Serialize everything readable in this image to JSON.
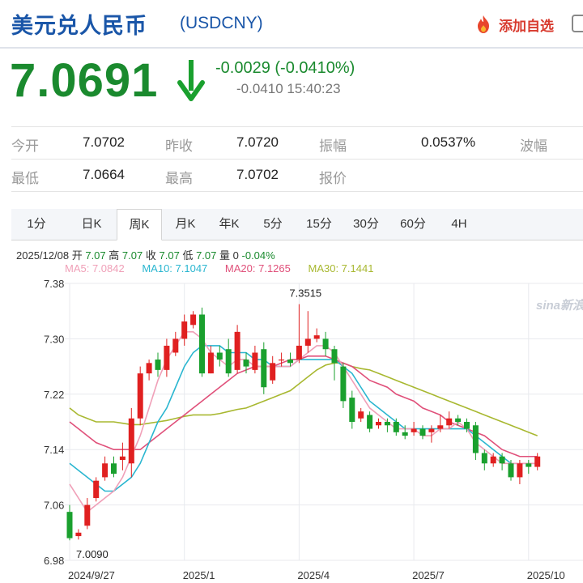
{
  "header": {
    "title": "美元兑人民币",
    "symbol": "(USDCNY)",
    "favorite_label": "添加自选"
  },
  "quote": {
    "price": "7.0691",
    "change": "-0.0029 (-0.0410%)",
    "change_pct_time": "-0.0410 15:40:23"
  },
  "stats": {
    "row1": [
      {
        "label": "今开",
        "value": "7.0702"
      },
      {
        "label": "昨收",
        "value": "7.0720"
      },
      {
        "label": "振幅",
        "value": "0.0537%"
      },
      {
        "label": "波幅",
        "value": ""
      }
    ],
    "row2": [
      {
        "label": "最低",
        "value": "7.0664"
      },
      {
        "label": "最高",
        "value": "7.0702"
      },
      {
        "label": "报价",
        "value": ""
      }
    ]
  },
  "tabs": [
    "1分",
    "日K",
    "周K",
    "月K",
    "年K",
    "5分",
    "15分",
    "30分",
    "60分",
    "4H"
  ],
  "active_tab": "周K",
  "ohlc_line": {
    "date": "2025/12/08",
    "open_label": "开",
    "open": "7.07",
    "high_label": "高",
    "high": "7.07",
    "close_label": "收",
    "close": "7.07",
    "low_label": "低",
    "low": "7.07",
    "vol_label": "量",
    "vol": "0",
    "chg": "-0.04%"
  },
  "ma_legend": [
    {
      "text": "MA5: 7.0842",
      "color": "#f0a0b8"
    },
    {
      "text": "MA10: 7.1047",
      "color": "#2ab6d0"
    },
    {
      "text": "MA20: 7.1265",
      "color": "#e0507a"
    },
    {
      "text": "MA30: 7.1441",
      "color": "#a8b830"
    }
  ],
  "colors": {
    "up": "#e02020",
    "down": "#1aa02e",
    "ma5": "#f0a0b8",
    "ma10": "#2ab6d0",
    "ma20": "#e0507a",
    "ma30": "#a8b830",
    "grid": "#e8eaee"
  },
  "watermark": "sina新浪",
  "chart_data": {
    "type": "candlestick",
    "y_ticks": [
      7.38,
      7.3,
      7.22,
      7.14,
      7.06,
      6.98
    ],
    "ylim": [
      6.98,
      7.38
    ],
    "x_ticks": [
      {
        "label": "2024/9/27",
        "index": 0
      },
      {
        "label": "2025/1",
        "index": 13
      },
      {
        "label": "2025/4",
        "index": 26
      },
      {
        "label": "2025/7",
        "index": 39
      },
      {
        "label": "2025/10",
        "index": 52
      }
    ],
    "annotations": [
      {
        "text": "7.3515",
        "index": 26,
        "value": 7.3515
      },
      {
        "text": "7.0090",
        "index": 0,
        "value": 7.009
      }
    ],
    "candles": [
      [
        7.05,
        7.012,
        7.06,
        7.009
      ],
      [
        7.015,
        7.02,
        7.025,
        7.01
      ],
      [
        7.03,
        7.06,
        7.07,
        7.025
      ],
      [
        7.07,
        7.095,
        7.1,
        7.065
      ],
      [
        7.1,
        7.12,
        7.13,
        7.095
      ],
      [
        7.12,
        7.105,
        7.13,
        7.1
      ],
      [
        7.125,
        7.13,
        7.15,
        7.11
      ],
      [
        7.12,
        7.185,
        7.2,
        7.1
      ],
      [
        7.185,
        7.25,
        7.26,
        7.175
      ],
      [
        7.25,
        7.265,
        7.27,
        7.24
      ],
      [
        7.27,
        7.255,
        7.28,
        7.245
      ],
      [
        7.255,
        7.29,
        7.3,
        7.245
      ],
      [
        7.28,
        7.3,
        7.31,
        7.275
      ],
      [
        7.3,
        7.325,
        7.335,
        7.29
      ],
      [
        7.32,
        7.335,
        7.34,
        7.315
      ],
      [
        7.335,
        7.25,
        7.345,
        7.245
      ],
      [
        7.25,
        7.28,
        7.29,
        7.25
      ],
      [
        7.28,
        7.27,
        7.29,
        7.26
      ],
      [
        7.285,
        7.25,
        7.3,
        7.245
      ],
      [
        7.255,
        7.31,
        7.32,
        7.25
      ],
      [
        7.27,
        7.26,
        7.28,
        7.25
      ],
      [
        7.255,
        7.28,
        7.29,
        7.25
      ],
      [
        7.285,
        7.23,
        7.295,
        7.22
      ],
      [
        7.24,
        7.265,
        7.275,
        7.235
      ],
      [
        7.27,
        7.27,
        7.28,
        7.26
      ],
      [
        7.27,
        7.265,
        7.28,
        7.26
      ],
      [
        7.27,
        7.29,
        7.35,
        7.265
      ],
      [
        7.29,
        7.3,
        7.34,
        7.28
      ],
      [
        7.3,
        7.305,
        7.315,
        7.295
      ],
      [
        7.3,
        7.285,
        7.31,
        7.275
      ],
      [
        7.285,
        7.265,
        7.29,
        7.24
      ],
      [
        7.26,
        7.21,
        7.265,
        7.2
      ],
      [
        7.215,
        7.18,
        7.225,
        7.17
      ],
      [
        7.185,
        7.195,
        7.2,
        7.18
      ],
      [
        7.19,
        7.17,
        7.195,
        7.165
      ],
      [
        7.175,
        7.18,
        7.185,
        7.17
      ],
      [
        7.18,
        7.175,
        7.185,
        7.165
      ],
      [
        7.18,
        7.165,
        7.185,
        7.16
      ],
      [
        7.165,
        7.16,
        7.175,
        7.155
      ],
      [
        7.165,
        7.17,
        7.18,
        7.16
      ],
      [
        7.17,
        7.16,
        7.175,
        7.155
      ],
      [
        7.165,
        7.17,
        7.175,
        7.15
      ],
      [
        7.17,
        7.175,
        7.19,
        7.165
      ],
      [
        7.175,
        7.185,
        7.195,
        7.17
      ],
      [
        7.185,
        7.18,
        7.19,
        7.175
      ],
      [
        7.18,
        7.17,
        7.185,
        7.165
      ],
      [
        7.175,
        7.135,
        7.18,
        7.125
      ],
      [
        7.135,
        7.12,
        7.14,
        7.11
      ],
      [
        7.12,
        7.13,
        7.135,
        7.115
      ],
      [
        7.13,
        7.12,
        7.135,
        7.11
      ],
      [
        7.12,
        7.1,
        7.125,
        7.095
      ],
      [
        7.1,
        7.12,
        7.125,
        7.09
      ],
      [
        7.12,
        7.115,
        7.125,
        7.105
      ],
      [
        7.115,
        7.13,
        7.135,
        7.11
      ]
    ],
    "ma5": [
      7.09,
      7.07,
      7.05,
      7.06,
      7.07,
      7.08,
      7.1,
      7.13,
      7.16,
      7.2,
      7.24,
      7.27,
      7.29,
      7.31,
      7.31,
      7.3,
      7.28,
      7.27,
      7.26,
      7.27,
      7.27,
      7.26,
      7.26,
      7.26,
      7.26,
      7.26,
      7.27,
      7.28,
      7.29,
      7.29,
      7.28,
      7.26,
      7.24,
      7.22,
      7.2,
      7.19,
      7.18,
      7.17,
      7.17,
      7.17,
      7.16,
      7.16,
      7.17,
      7.17,
      7.18,
      7.17,
      7.15,
      7.14,
      7.13,
      7.12,
      7.12,
      7.12,
      7.12,
      7.12
    ],
    "ma10": [
      7.12,
      7.11,
      7.1,
      7.09,
      7.08,
      7.08,
      7.09,
      7.1,
      7.12,
      7.15,
      7.18,
      7.2,
      7.23,
      7.26,
      7.28,
      7.29,
      7.29,
      7.29,
      7.28,
      7.28,
      7.28,
      7.27,
      7.27,
      7.26,
      7.26,
      7.26,
      7.27,
      7.27,
      7.27,
      7.27,
      7.27,
      7.26,
      7.25,
      7.23,
      7.21,
      7.2,
      7.19,
      7.18,
      7.17,
      7.17,
      7.17,
      7.17,
      7.17,
      7.17,
      7.17,
      7.17,
      7.16,
      7.15,
      7.14,
      7.13,
      7.12,
      7.12,
      7.12,
      7.12
    ],
    "ma20": [
      7.18,
      7.17,
      7.16,
      7.15,
      7.145,
      7.14,
      7.14,
      7.14,
      7.14,
      7.15,
      7.16,
      7.17,
      7.18,
      7.19,
      7.2,
      7.21,
      7.22,
      7.23,
      7.24,
      7.25,
      7.255,
      7.26,
      7.26,
      7.26,
      7.265,
      7.27,
      7.27,
      7.275,
      7.275,
      7.275,
      7.27,
      7.265,
      7.26,
      7.25,
      7.24,
      7.235,
      7.23,
      7.22,
      7.215,
      7.21,
      7.2,
      7.195,
      7.19,
      7.18,
      7.175,
      7.17,
      7.165,
      7.16,
      7.15,
      7.14,
      7.135,
      7.13,
      7.13,
      7.13
    ],
    "ma30": [
      7.2,
      7.19,
      7.185,
      7.18,
      7.18,
      7.18,
      7.178,
      7.176,
      7.176,
      7.178,
      7.18,
      7.182,
      7.185,
      7.188,
      7.19,
      7.19,
      7.19,
      7.192,
      7.195,
      7.198,
      7.2,
      7.205,
      7.21,
      7.215,
      7.22,
      7.225,
      7.235,
      7.245,
      7.255,
      7.262,
      7.265,
      7.265,
      7.26,
      7.257,
      7.255,
      7.25,
      7.245,
      7.24,
      7.235,
      7.23,
      7.225,
      7.22,
      7.215,
      7.21,
      7.205,
      7.2,
      7.195,
      7.19,
      7.185,
      7.18,
      7.175,
      7.17,
      7.165,
      7.16
    ]
  }
}
